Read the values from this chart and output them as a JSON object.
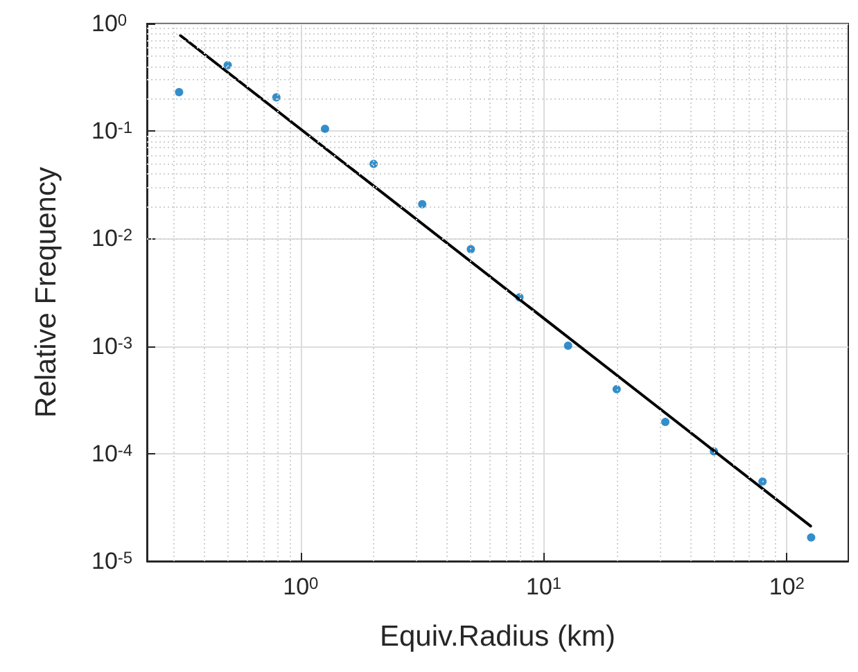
{
  "chart_data": {
    "type": "scatter",
    "xlabel": "Equiv.Radius (km)",
    "ylabel": "Relative Frequency",
    "log": "xy",
    "grid": true,
    "marker": "circle",
    "xlim": [
      0.233,
      179
    ],
    "ylim": [
      1e-05,
      1
    ],
    "xticks": [
      {
        "value": 1,
        "label": "10$^{0}$"
      },
      {
        "value": 10,
        "label": "10$^{1}$"
      },
      {
        "value": 100,
        "label": "10$^{2}$"
      }
    ],
    "yticks": [
      {
        "value": 1e-05,
        "label": "10$^{-5}$"
      },
      {
        "value": 0.0001,
        "label": "10$^{-4}$"
      },
      {
        "value": 0.001,
        "label": "10$^{-3}$"
      },
      {
        "value": 0.01,
        "label": "10$^{-2}$"
      },
      {
        "value": 0.1,
        "label": "10$^{-1}$"
      },
      {
        "value": 1,
        "label": "10$^{0}$"
      }
    ],
    "series": [
      {
        "color": "#0072bd",
        "x": [
          0.316,
          0.501,
          0.794,
          1.259,
          1.995,
          3.162,
          5.012,
          7.943,
          12.59,
          19.95,
          31.62,
          50.12,
          79.43,
          125.9
        ],
        "values": [
          0.23,
          0.41,
          0.206,
          0.105,
          0.0495,
          0.0209,
          0.00796,
          0.00284,
          0.00101,
          0.000397,
          0.000197,
          0.000105,
          5.5e-05,
          1.66e-05
        ]
      },
      {
        "type": "line",
        "color": "#000000",
        "line_style": "solid",
        "marker": "none",
        "x": [
          0.32,
          125.3
        ],
        "values": [
          0.774,
          2.12e-05
        ]
      }
    ]
  }
}
